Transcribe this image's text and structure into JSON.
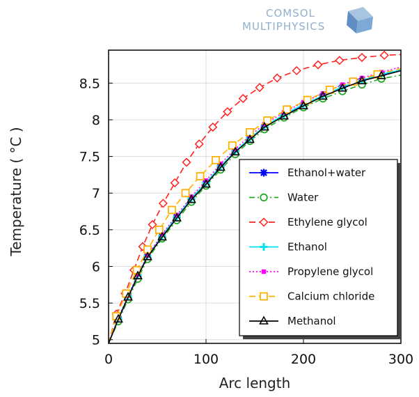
{
  "logo": {
    "line1": "COMSOL",
    "line2": "MULTIPHYSICS"
  },
  "chart_data": {
    "type": "line",
    "xlabel": "Arc length",
    "ylabel": "Temperature ( °C )",
    "xlim": [
      0,
      300
    ],
    "ylim": [
      4.95,
      8.95
    ],
    "xticks": [
      0,
      100,
      200,
      300
    ],
    "xtick_labels": [
      "0",
      "100",
      "200",
      "300"
    ],
    "yticks": [
      5,
      5.5,
      6,
      6.5,
      7,
      7.5,
      8,
      8.5
    ],
    "ytick_labels": [
      "5",
      "5.5",
      "6",
      "6.5",
      "7",
      "7.5",
      "8",
      "8.5"
    ],
    "grid": true,
    "legend_position": "lower-right",
    "series": [
      {
        "name": "Ethanol+water",
        "color": "#0000ff",
        "dash": "solid",
        "marker": "asterisk",
        "x": [
          0,
          10,
          20,
          30,
          40,
          55,
          70,
          85,
          100,
          115,
          130,
          145,
          160,
          180,
          200,
          220,
          240,
          260,
          280,
          300
        ],
        "y": [
          4.95,
          5.28,
          5.58,
          5.87,
          6.13,
          6.41,
          6.67,
          6.92,
          7.13,
          7.36,
          7.56,
          7.74,
          7.9,
          8.06,
          8.2,
          8.32,
          8.44,
          8.53,
          8.61,
          8.67
        ]
      },
      {
        "name": "Water",
        "color": "#22aa22",
        "dash": "dashdot",
        "marker": "circle",
        "x": [
          0,
          10,
          20,
          30,
          40,
          55,
          70,
          85,
          100,
          115,
          130,
          145,
          160,
          180,
          200,
          220,
          240,
          260,
          280,
          300
        ],
        "y": [
          4.95,
          5.25,
          5.55,
          5.83,
          6.1,
          6.38,
          6.63,
          6.88,
          7.1,
          7.32,
          7.53,
          7.71,
          7.87,
          8.03,
          8.17,
          8.29,
          8.39,
          8.48,
          8.56,
          8.61
        ]
      },
      {
        "name": "Ethylene glycol",
        "color": "#ff2020",
        "dash": "dashed",
        "marker": "diamond",
        "x": [
          0,
          8,
          17,
          26,
          35,
          45,
          56,
          68,
          80,
          93,
          107,
          122,
          138,
          155,
          173,
          193,
          215,
          237,
          260,
          283,
          300
        ],
        "y": [
          4.95,
          5.35,
          5.63,
          5.95,
          6.27,
          6.57,
          6.86,
          7.14,
          7.42,
          7.67,
          7.9,
          8.11,
          8.29,
          8.44,
          8.57,
          8.67,
          8.75,
          8.81,
          8.85,
          8.88,
          8.89
        ]
      },
      {
        "name": "Ethanol",
        "color": "#00e5ee",
        "dash": "solid",
        "marker": "plus",
        "x": [
          0,
          10,
          20,
          30,
          40,
          55,
          70,
          85,
          100,
          115,
          130,
          145,
          160,
          180,
          200,
          220,
          240,
          260,
          280,
          300
        ],
        "y": [
          4.95,
          5.29,
          5.59,
          5.88,
          6.14,
          6.42,
          6.68,
          6.93,
          7.14,
          7.37,
          7.57,
          7.75,
          7.91,
          8.07,
          8.21,
          8.33,
          8.45,
          8.54,
          8.62,
          8.68
        ]
      },
      {
        "name": "Propylene glycol",
        "color": "#ff00ff",
        "dash": "dotted",
        "marker": "square",
        "x": [
          0,
          10,
          20,
          30,
          40,
          55,
          70,
          85,
          100,
          115,
          130,
          145,
          160,
          180,
          200,
          220,
          240,
          260,
          280,
          300
        ],
        "y": [
          4.95,
          5.3,
          5.6,
          5.89,
          6.15,
          6.44,
          6.7,
          6.95,
          7.17,
          7.4,
          7.6,
          7.78,
          7.94,
          8.1,
          8.24,
          8.36,
          8.48,
          8.57,
          8.65,
          8.72
        ]
      },
      {
        "name": "Calcium chloride",
        "color": "#ffb000",
        "dash": "dashed",
        "marker": "square-open",
        "x": [
          0,
          8,
          18,
          29,
          40,
          52,
          65,
          79,
          94,
          110,
          127,
          145,
          163,
          183,
          204,
          227,
          251,
          276,
          300
        ],
        "y": [
          4.95,
          5.32,
          5.63,
          5.95,
          6.23,
          6.5,
          6.77,
          7.0,
          7.23,
          7.45,
          7.65,
          7.83,
          7.99,
          8.14,
          8.27,
          8.41,
          8.52,
          8.62,
          8.7
        ]
      },
      {
        "name": "Methanol",
        "color": "#000000",
        "dash": "solid",
        "marker": "triangle",
        "x": [
          0,
          10,
          20,
          30,
          40,
          55,
          70,
          85,
          100,
          115,
          130,
          145,
          160,
          180,
          200,
          220,
          240,
          260,
          280,
          300
        ],
        "y": [
          4.95,
          5.28,
          5.58,
          5.87,
          6.13,
          6.4,
          6.66,
          6.91,
          7.12,
          7.35,
          7.56,
          7.73,
          7.9,
          8.05,
          8.19,
          8.32,
          8.43,
          8.53,
          8.6,
          8.67
        ]
      }
    ]
  }
}
